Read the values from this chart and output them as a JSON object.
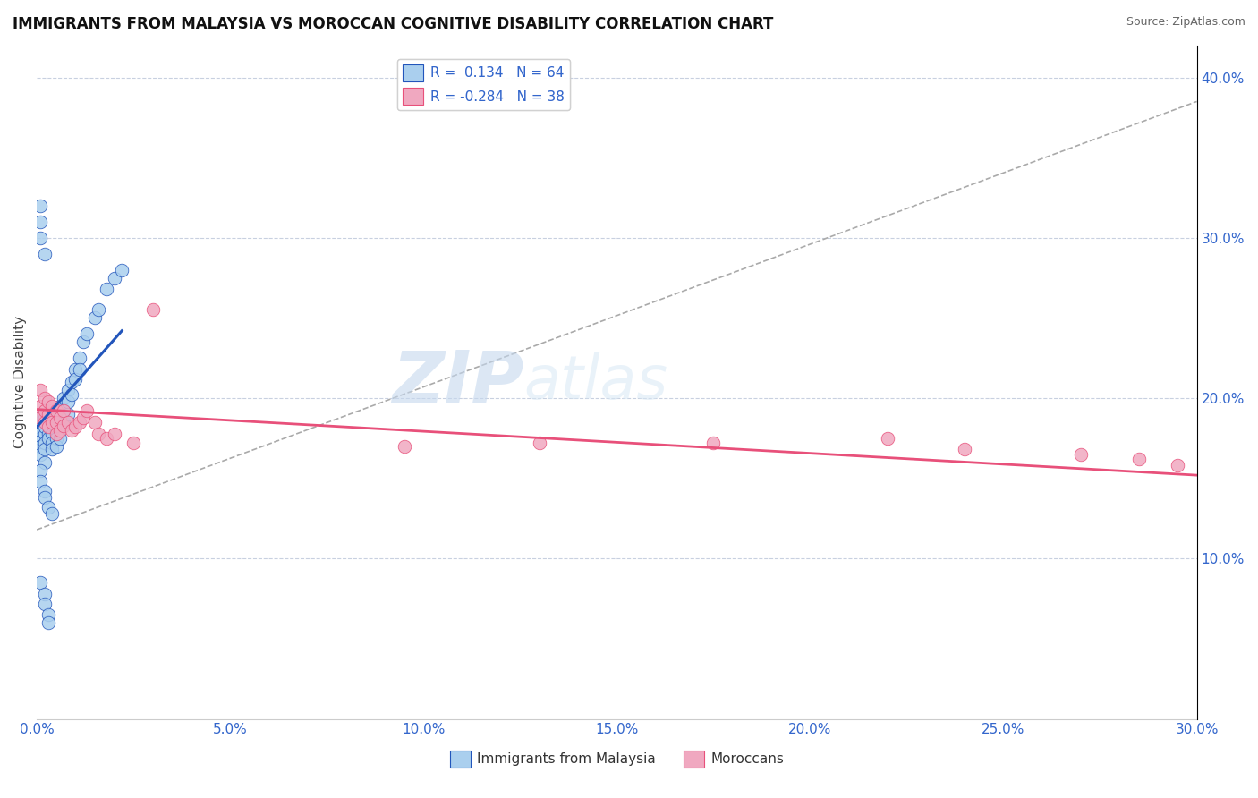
{
  "title": "IMMIGRANTS FROM MALAYSIA VS MOROCCAN COGNITIVE DISABILITY CORRELATION CHART",
  "source": "Source: ZipAtlas.com",
  "xlabel_label": "Immigrants from Malaysia",
  "xlabel_label2": "Moroccans",
  "ylabel": "Cognitive Disability",
  "xlim": [
    0.0,
    0.3
  ],
  "ylim": [
    0.0,
    0.42
  ],
  "xticks": [
    0.0,
    0.05,
    0.1,
    0.15,
    0.2,
    0.25,
    0.3
  ],
  "yticks": [
    0.1,
    0.2,
    0.3,
    0.4
  ],
  "ytick_labels": [
    "10.0%",
    "20.0%",
    "30.0%",
    "40.0%"
  ],
  "xtick_labels": [
    "0.0%",
    "5.0%",
    "10.0%",
    "15.0%",
    "20.0%",
    "25.0%",
    "30.0%"
  ],
  "legend_R1": "0.134",
  "legend_N1": "64",
  "legend_R2": "-0.284",
  "legend_N2": "38",
  "color_malaysia": "#aacfee",
  "color_morocco": "#f0a8c0",
  "trendline_malaysia_color": "#2255bb",
  "trendline_morocco_color": "#e8507a",
  "trendline_dash_color": "#aaaaaa",
  "watermark_zip": "ZIP",
  "watermark_atlas": "atlas",
  "malaysia_x": [
    0.001,
    0.001,
    0.001,
    0.001,
    0.001,
    0.001,
    0.002,
    0.002,
    0.002,
    0.002,
    0.002,
    0.002,
    0.003,
    0.003,
    0.003,
    0.003,
    0.003,
    0.004,
    0.004,
    0.004,
    0.004,
    0.004,
    0.005,
    0.005,
    0.005,
    0.005,
    0.006,
    0.006,
    0.006,
    0.006,
    0.007,
    0.007,
    0.007,
    0.008,
    0.008,
    0.008,
    0.009,
    0.009,
    0.01,
    0.01,
    0.011,
    0.011,
    0.012,
    0.013,
    0.015,
    0.016,
    0.018,
    0.02,
    0.022,
    0.001,
    0.001,
    0.002,
    0.002,
    0.003,
    0.004,
    0.001,
    0.001,
    0.001,
    0.002,
    0.001,
    0.002,
    0.002,
    0.003,
    0.003
  ],
  "malaysia_y": [
    0.175,
    0.18,
    0.185,
    0.19,
    0.17,
    0.165,
    0.178,
    0.182,
    0.188,
    0.172,
    0.16,
    0.168,
    0.185,
    0.19,
    0.178,
    0.175,
    0.183,
    0.192,
    0.186,
    0.178,
    0.172,
    0.168,
    0.185,
    0.18,
    0.175,
    0.17,
    0.195,
    0.188,
    0.182,
    0.175,
    0.2,
    0.192,
    0.185,
    0.205,
    0.198,
    0.19,
    0.21,
    0.202,
    0.218,
    0.212,
    0.225,
    0.218,
    0.235,
    0.24,
    0.25,
    0.255,
    0.268,
    0.275,
    0.28,
    0.155,
    0.148,
    0.142,
    0.138,
    0.132,
    0.128,
    0.32,
    0.3,
    0.31,
    0.29,
    0.085,
    0.078,
    0.072,
    0.065,
    0.06
  ],
  "morocco_x": [
    0.001,
    0.001,
    0.001,
    0.002,
    0.002,
    0.002,
    0.003,
    0.003,
    0.003,
    0.004,
    0.004,
    0.005,
    0.005,
    0.005,
    0.006,
    0.006,
    0.007,
    0.007,
    0.008,
    0.009,
    0.01,
    0.011,
    0.012,
    0.013,
    0.015,
    0.016,
    0.018,
    0.02,
    0.025,
    0.03,
    0.095,
    0.13,
    0.175,
    0.22,
    0.24,
    0.27,
    0.285,
    0.295
  ],
  "morocco_y": [
    0.205,
    0.195,
    0.188,
    0.2,
    0.192,
    0.185,
    0.198,
    0.19,
    0.182,
    0.195,
    0.185,
    0.192,
    0.185,
    0.178,
    0.188,
    0.18,
    0.192,
    0.183,
    0.185,
    0.18,
    0.182,
    0.185,
    0.188,
    0.192,
    0.185,
    0.178,
    0.175,
    0.178,
    0.172,
    0.255,
    0.17,
    0.172,
    0.172,
    0.175,
    0.168,
    0.165,
    0.162,
    0.158
  ],
  "trendline_malaysia_x0": 0.0,
  "trendline_malaysia_x1": 0.022,
  "trendline_malaysia_y0": 0.182,
  "trendline_malaysia_y1": 0.242,
  "trendline_dash_x0": 0.0,
  "trendline_dash_x1": 0.3,
  "trendline_dash_y0": 0.118,
  "trendline_dash_y1": 0.385,
  "trendline_morocco_x0": 0.0,
  "trendline_morocco_x1": 0.3,
  "trendline_morocco_y0": 0.193,
  "trendline_morocco_y1": 0.152
}
